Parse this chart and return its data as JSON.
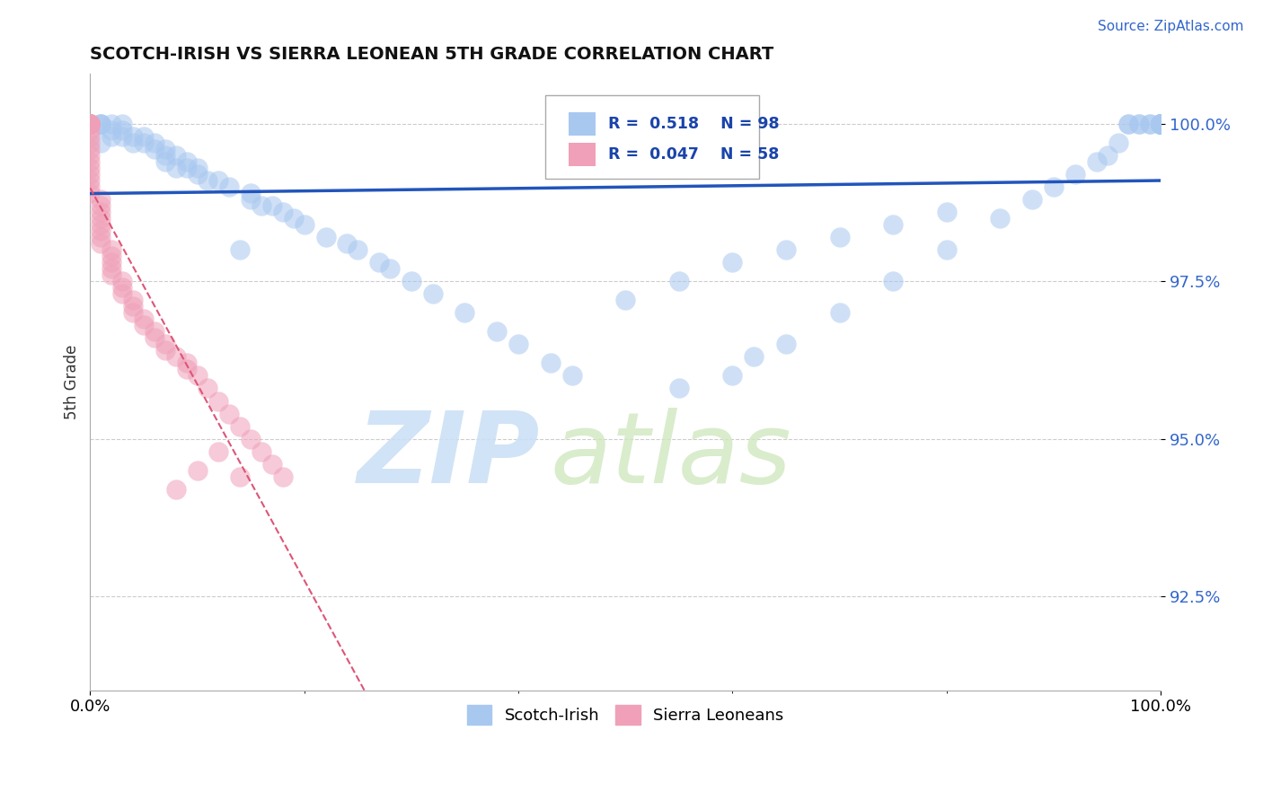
{
  "title": "SCOTCH-IRISH VS SIERRA LEONEAN 5TH GRADE CORRELATION CHART",
  "ylabel": "5th Grade",
  "source": "Source: ZipAtlas.com",
  "x_range": [
    0.0,
    1.0
  ],
  "y_range": [
    0.91,
    1.008
  ],
  "blue_R": 0.518,
  "blue_N": 98,
  "pink_R": 0.047,
  "pink_N": 58,
  "blue_color": "#a8c8f0",
  "pink_color": "#f0a0b8",
  "blue_line_color": "#2255bb",
  "pink_line_color": "#dd5577",
  "legend_blue_label": "Scotch-Irish",
  "legend_pink_label": "Sierra Leoneans",
  "yticks": [
    0.925,
    0.95,
    0.975,
    1.0
  ],
  "ytick_labels": [
    "92.5%",
    "95.0%",
    "97.5%",
    "100.0%"
  ],
  "blue_x": [
    0.0,
    0.0,
    0.0,
    0.0,
    0.0,
    0.01,
    0.01,
    0.01,
    0.01,
    0.02,
    0.02,
    0.02,
    0.03,
    0.03,
    0.03,
    0.04,
    0.04,
    0.05,
    0.05,
    0.06,
    0.06,
    0.07,
    0.07,
    0.07,
    0.08,
    0.08,
    0.09,
    0.09,
    0.1,
    0.1,
    0.11,
    0.12,
    0.13,
    0.14,
    0.15,
    0.15,
    0.16,
    0.17,
    0.18,
    0.19,
    0.2,
    0.22,
    0.24,
    0.25,
    0.27,
    0.28,
    0.3,
    0.32,
    0.35,
    0.38,
    0.4,
    0.43,
    0.45,
    0.5,
    0.55,
    0.6,
    0.65,
    0.7,
    0.75,
    0.8,
    0.55,
    0.6,
    0.62,
    0.65,
    0.7,
    0.75,
    0.8,
    0.85,
    0.88,
    0.9,
    0.92,
    0.94,
    0.95,
    0.96,
    0.97,
    0.97,
    0.98,
    0.98,
    0.99,
    0.99,
    1.0,
    1.0,
    1.0,
    1.0,
    1.0,
    1.0,
    1.0,
    1.0,
    1.0,
    1.0,
    1.0,
    1.0,
    1.0,
    1.0,
    1.0,
    1.0,
    1.0,
    1.0
  ],
  "blue_y": [
    1.0,
    1.0,
    1.0,
    1.0,
    1.0,
    1.0,
    1.0,
    1.0,
    0.997,
    1.0,
    0.999,
    0.998,
    1.0,
    0.999,
    0.998,
    0.998,
    0.997,
    0.998,
    0.997,
    0.997,
    0.996,
    0.996,
    0.995,
    0.994,
    0.995,
    0.993,
    0.994,
    0.993,
    0.993,
    0.992,
    0.991,
    0.991,
    0.99,
    0.98,
    0.989,
    0.988,
    0.987,
    0.987,
    0.986,
    0.985,
    0.984,
    0.982,
    0.981,
    0.98,
    0.978,
    0.977,
    0.975,
    0.973,
    0.97,
    0.967,
    0.965,
    0.962,
    0.96,
    0.972,
    0.975,
    0.978,
    0.98,
    0.982,
    0.984,
    0.986,
    0.958,
    0.96,
    0.963,
    0.965,
    0.97,
    0.975,
    0.98,
    0.985,
    0.988,
    0.99,
    0.992,
    0.994,
    0.995,
    0.997,
    1.0,
    1.0,
    1.0,
    1.0,
    1.0,
    1.0,
    1.0,
    1.0,
    1.0,
    1.0,
    1.0,
    1.0,
    1.0,
    1.0,
    1.0,
    1.0,
    1.0,
    1.0,
    1.0,
    1.0,
    1.0,
    1.0,
    1.0,
    1.0
  ],
  "pink_x": [
    0.0,
    0.0,
    0.0,
    0.0,
    0.0,
    0.0,
    0.0,
    0.0,
    0.0,
    0.0,
    0.0,
    0.0,
    0.0,
    0.0,
    0.0,
    0.0,
    0.0,
    0.01,
    0.01,
    0.01,
    0.01,
    0.01,
    0.01,
    0.01,
    0.01,
    0.02,
    0.02,
    0.02,
    0.02,
    0.02,
    0.03,
    0.03,
    0.03,
    0.04,
    0.04,
    0.04,
    0.05,
    0.05,
    0.06,
    0.06,
    0.07,
    0.07,
    0.08,
    0.09,
    0.09,
    0.1,
    0.11,
    0.12,
    0.13,
    0.14,
    0.15,
    0.16,
    0.17,
    0.18,
    0.08,
    0.1,
    0.12,
    0.14
  ],
  "pink_y": [
    1.0,
    1.0,
    1.0,
    1.0,
    1.0,
    1.0,
    0.999,
    0.998,
    0.997,
    0.996,
    0.995,
    0.994,
    0.993,
    0.992,
    0.991,
    0.99,
    0.989,
    0.988,
    0.987,
    0.986,
    0.985,
    0.984,
    0.983,
    0.982,
    0.981,
    0.98,
    0.979,
    0.978,
    0.977,
    0.976,
    0.975,
    0.974,
    0.973,
    0.972,
    0.971,
    0.97,
    0.969,
    0.968,
    0.967,
    0.966,
    0.965,
    0.964,
    0.963,
    0.962,
    0.961,
    0.96,
    0.958,
    0.956,
    0.954,
    0.952,
    0.95,
    0.948,
    0.946,
    0.944,
    0.942,
    0.945,
    0.948,
    0.944
  ]
}
